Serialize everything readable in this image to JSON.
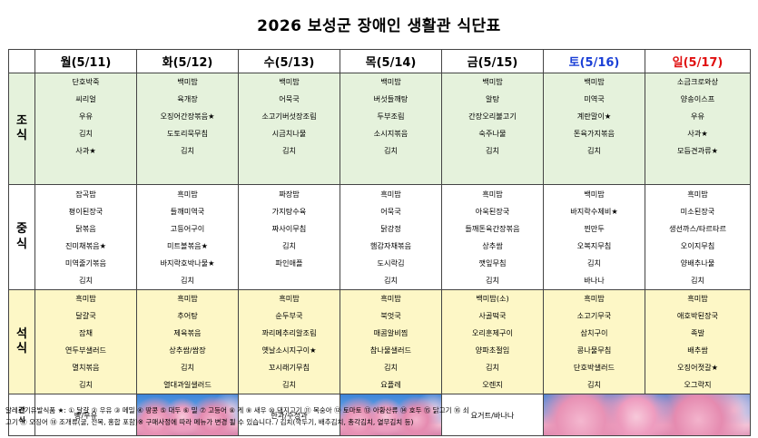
{
  "title": "2026 보성군 장애인 생활관 식단표",
  "days": [
    {
      "label": "월(5/11)",
      "color": "#000000"
    },
    {
      "label": "화(5/12)",
      "color": "#000000"
    },
    {
      "label": "수(5/13)",
      "color": "#000000"
    },
    {
      "label": "목(5/14)",
      "color": "#000000"
    },
    {
      "label": "금(5/15)",
      "color": "#000000"
    },
    {
      "label": "토(5/16)",
      "color": "#1a3fd6"
    },
    {
      "label": "일(5/17)",
      "color": "#e01010"
    }
  ],
  "meals": {
    "breakfast": {
      "label": "조\n식",
      "cells": [
        [
          "단호박죽",
          "씨리얼",
          "우유",
          "김치",
          "사과★"
        ],
        [
          "백미밥",
          "육개장",
          "오징어간장볶음★",
          "도토리묵무침",
          "김치"
        ],
        [
          "백미밥",
          "어묵국",
          "소고기버섯장조림",
          "시금치나물",
          "김치"
        ],
        [
          "백미밥",
          "버섯들깨탕",
          "두부조림",
          "소시지볶음",
          "김치"
        ],
        [
          "백미밥",
          "알탕",
          "간장오리불고기",
          "숙주나물",
          "김치"
        ],
        [
          "백미밥",
          "미역국",
          "계란말이★",
          "돈육가지볶음",
          "김치"
        ],
        [
          "소금크로와상",
          "양송이스프",
          "우유",
          "사과★",
          "모듬견과류★"
        ]
      ]
    },
    "lunch": {
      "label": "중\n식",
      "cells": [
        [
          "잡곡밥",
          "평이된장국",
          "닭볶음",
          "진미채볶음★",
          "미역줄기볶음",
          "김치"
        ],
        [
          "흑미밥",
          "들깨미역국",
          "고등어구이",
          "미트볼볶음★",
          "바지락호박나물★",
          "김치"
        ],
        [
          "짜장밥",
          "가지탕수육",
          "짜사이무침",
          "김치",
          "파인애플"
        ],
        [
          "흑미밥",
          "어묵국",
          "닭강정",
          "햄감자채볶음",
          "도시락김",
          "김치"
        ],
        [
          "흑미밥",
          "아욱된장국",
          "들깨돈육간장볶음",
          "상추쌈",
          "깻잎무침",
          "김치"
        ],
        [
          "백미밥",
          "바지락수제비★",
          "찐만두",
          "오복지무침",
          "김치",
          "바나나"
        ],
        [
          "흑미밥",
          "미소된장국",
          "생선까스/타르타르",
          "오이지무침",
          "양배추나물",
          "김치"
        ]
      ]
    },
    "dinner": {
      "label": "석\n식",
      "cells": [
        [
          "흑미밥",
          "달걀국",
          "잡채",
          "연두부샐러드",
          "멸치볶음",
          "김치"
        ],
        [
          "흑미밥",
          "추어탕",
          "제육볶음",
          "상추쌈/쌈장",
          "김치",
          "열대과일샐러드"
        ],
        [
          "흑미밥",
          "순두부국",
          "꽈리메추리알조림",
          "옛날소시지구이★",
          "꼬시래기무침",
          "김치"
        ],
        [
          "흑미밥",
          "북엇국",
          "매콤알비찜",
          "참나물샐러드",
          "김치",
          "요플레"
        ],
        [
          "백미밥(소)",
          "사골떡국",
          "오리훈제구이",
          "양파초절임",
          "김치",
          "오렌지"
        ],
        [
          "흑미밥",
          "소고기무국",
          "삼치구이",
          "콩나물무침",
          "단호박샐러드",
          "김치"
        ],
        [
          "흑미밥",
          "애호박된장국",
          "족발",
          "배추쌈",
          "오징어젓갈★",
          "오그락지"
        ]
      ]
    },
    "snack": {
      "label": "간\n식",
      "cells": [
        "빵/우유",
        "",
        "한과/수정과",
        "",
        "요거트/바나나",
        "",
        ""
      ]
    }
  },
  "footer": {
    "allergy": "알레르기유발식품 ★: ① 달걀 ② 우유 ③ 메밀 ④ 땅콩 ⑤ 대두 ⑥ 밀 ⑦ 고등어 ⑧ 게 ⑨ 새우 ⑩ 돼지고기 ⑪ 복숭아 ⑫ 토마토 ⑬ 아황산류 ⑭ 호두 ⑮ 닭고기 ⑯ 쇠",
    "allergy_cont": "고기 ⑰ 오징어 ⑱ 조개류(굴, 전복, 홍합 포함)※ 구매사정에 따라 메뉴가 변경 될 수 있습니다. / 김치(깍두기, 배추김치, 총각김치, 열무김치 등)"
  }
}
